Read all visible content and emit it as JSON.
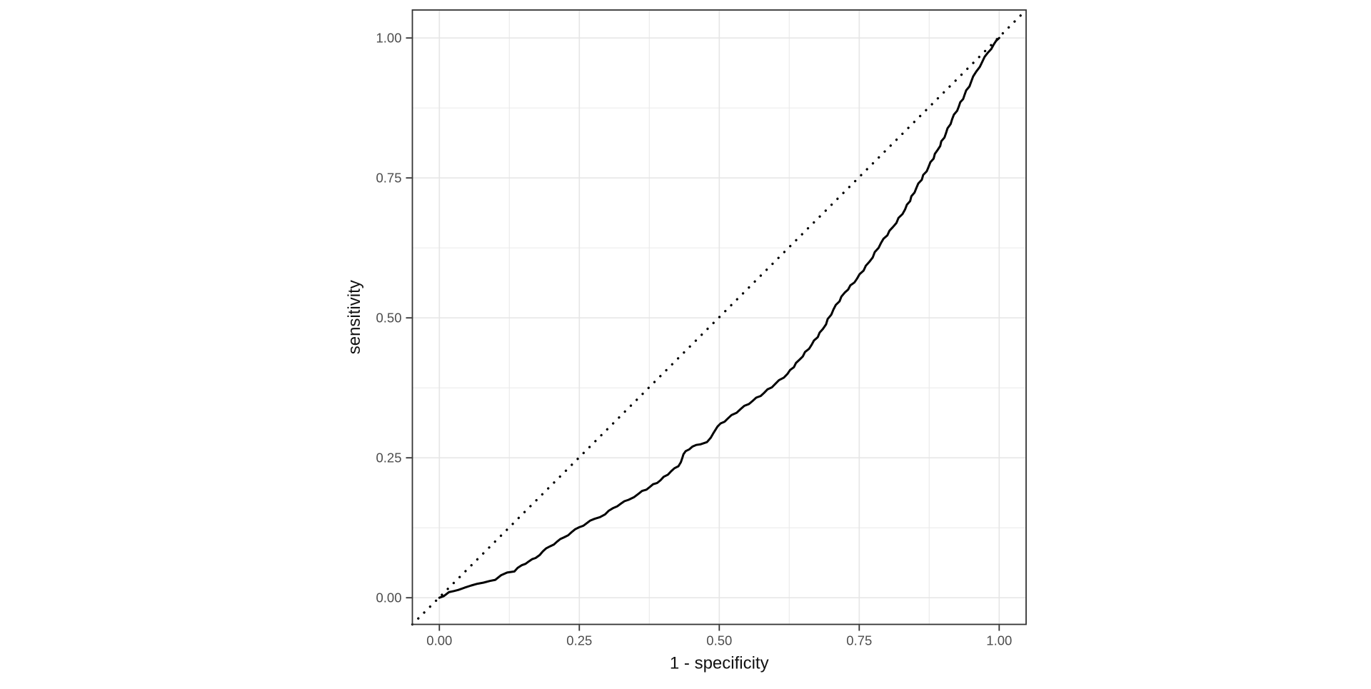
{
  "figure": {
    "background": "#ffffff"
  },
  "chart_data": {
    "type": "line",
    "subtype": "roc-curve",
    "title": "",
    "xlabel": "1 - specificity",
    "ylabel": "sensitivity",
    "xlim": [
      0,
      1
    ],
    "ylim": [
      0,
      1
    ],
    "grid": "on",
    "legend_position": "none",
    "panel_border": true,
    "x_ticks": {
      "values": [
        0,
        0.25,
        0.5,
        0.75,
        1
      ],
      "labels": [
        "0.00",
        "0.25",
        "0.50",
        "0.75",
        "1.00"
      ]
    },
    "y_ticks": {
      "values": [
        0,
        0.25,
        0.5,
        0.75,
        1
      ],
      "labels": [
        "0.00",
        "0.25",
        "0.50",
        "0.75",
        "1.00"
      ]
    },
    "minor_ticks": [
      0.125,
      0.375,
      0.625,
      0.875
    ],
    "axis_expansion": 0.048,
    "colors": {
      "major_gridline": "#e6e6e6",
      "minor_gridline": "#ebebeb",
      "panel_border": "#333333",
      "tick_mark": "#333333",
      "tick_label": "#4d4d4d",
      "axis_title": "#111111",
      "curve": "#000000",
      "diagonal": "#000000"
    },
    "series": [
      {
        "name": "roc_curve",
        "style": "solid",
        "color": "#000000",
        "points": [
          [
            0.0,
            0.0
          ],
          [
            0.008,
            0.003
          ],
          [
            0.017,
            0.01
          ],
          [
            0.026,
            0.012
          ],
          [
            0.034,
            0.014
          ],
          [
            0.045,
            0.018
          ],
          [
            0.057,
            0.022
          ],
          [
            0.068,
            0.025
          ],
          [
            0.079,
            0.027
          ],
          [
            0.09,
            0.03
          ],
          [
            0.1,
            0.032
          ],
          [
            0.11,
            0.04
          ],
          [
            0.121,
            0.045
          ],
          [
            0.134,
            0.047
          ],
          [
            0.147,
            0.058
          ],
          [
            0.16,
            0.065
          ],
          [
            0.172,
            0.071
          ],
          [
            0.185,
            0.083
          ],
          [
            0.198,
            0.092
          ],
          [
            0.21,
            0.1
          ],
          [
            0.223,
            0.108
          ],
          [
            0.236,
            0.117
          ],
          [
            0.25,
            0.126
          ],
          [
            0.263,
            0.133
          ],
          [
            0.277,
            0.141
          ],
          [
            0.296,
            0.149
          ],
          [
            0.31,
            0.16
          ],
          [
            0.324,
            0.168
          ],
          [
            0.338,
            0.175
          ],
          [
            0.356,
            0.186
          ],
          [
            0.376,
            0.198
          ],
          [
            0.395,
            0.21
          ],
          [
            0.414,
            0.226
          ],
          [
            0.427,
            0.235
          ],
          [
            0.434,
            0.25
          ],
          [
            0.44,
            0.262
          ],
          [
            0.452,
            0.27
          ],
          [
            0.466,
            0.274
          ],
          [
            0.478,
            0.278
          ],
          [
            0.49,
            0.295
          ],
          [
            0.497,
            0.306
          ],
          [
            0.515,
            0.32
          ],
          [
            0.538,
            0.337
          ],
          [
            0.56,
            0.352
          ],
          [
            0.58,
            0.366
          ],
          [
            0.6,
            0.382
          ],
          [
            0.622,
            0.4
          ],
          [
            0.643,
            0.425
          ],
          [
            0.665,
            0.452
          ],
          [
            0.685,
            0.48
          ],
          [
            0.704,
            0.515
          ],
          [
            0.724,
            0.545
          ],
          [
            0.746,
            0.57
          ],
          [
            0.768,
            0.6
          ],
          [
            0.789,
            0.634
          ],
          [
            0.81,
            0.662
          ],
          [
            0.832,
            0.694
          ],
          [
            0.852,
            0.732
          ],
          [
            0.874,
            0.77
          ],
          [
            0.89,
            0.8
          ],
          [
            0.905,
            0.83
          ],
          [
            0.916,
            0.855
          ],
          [
            0.928,
            0.878
          ],
          [
            0.938,
            0.898
          ],
          [
            0.95,
            0.922
          ],
          [
            0.959,
            0.94
          ],
          [
            0.97,
            0.958
          ],
          [
            0.98,
            0.974
          ],
          [
            0.99,
            0.988
          ],
          [
            1.0,
            1.0
          ]
        ]
      },
      {
        "name": "chance_diagonal",
        "style": "dotted",
        "color": "#000000",
        "points": [
          [
            0,
            0
          ],
          [
            1,
            1
          ]
        ],
        "extends_to_panel_corners": true
      }
    ]
  }
}
